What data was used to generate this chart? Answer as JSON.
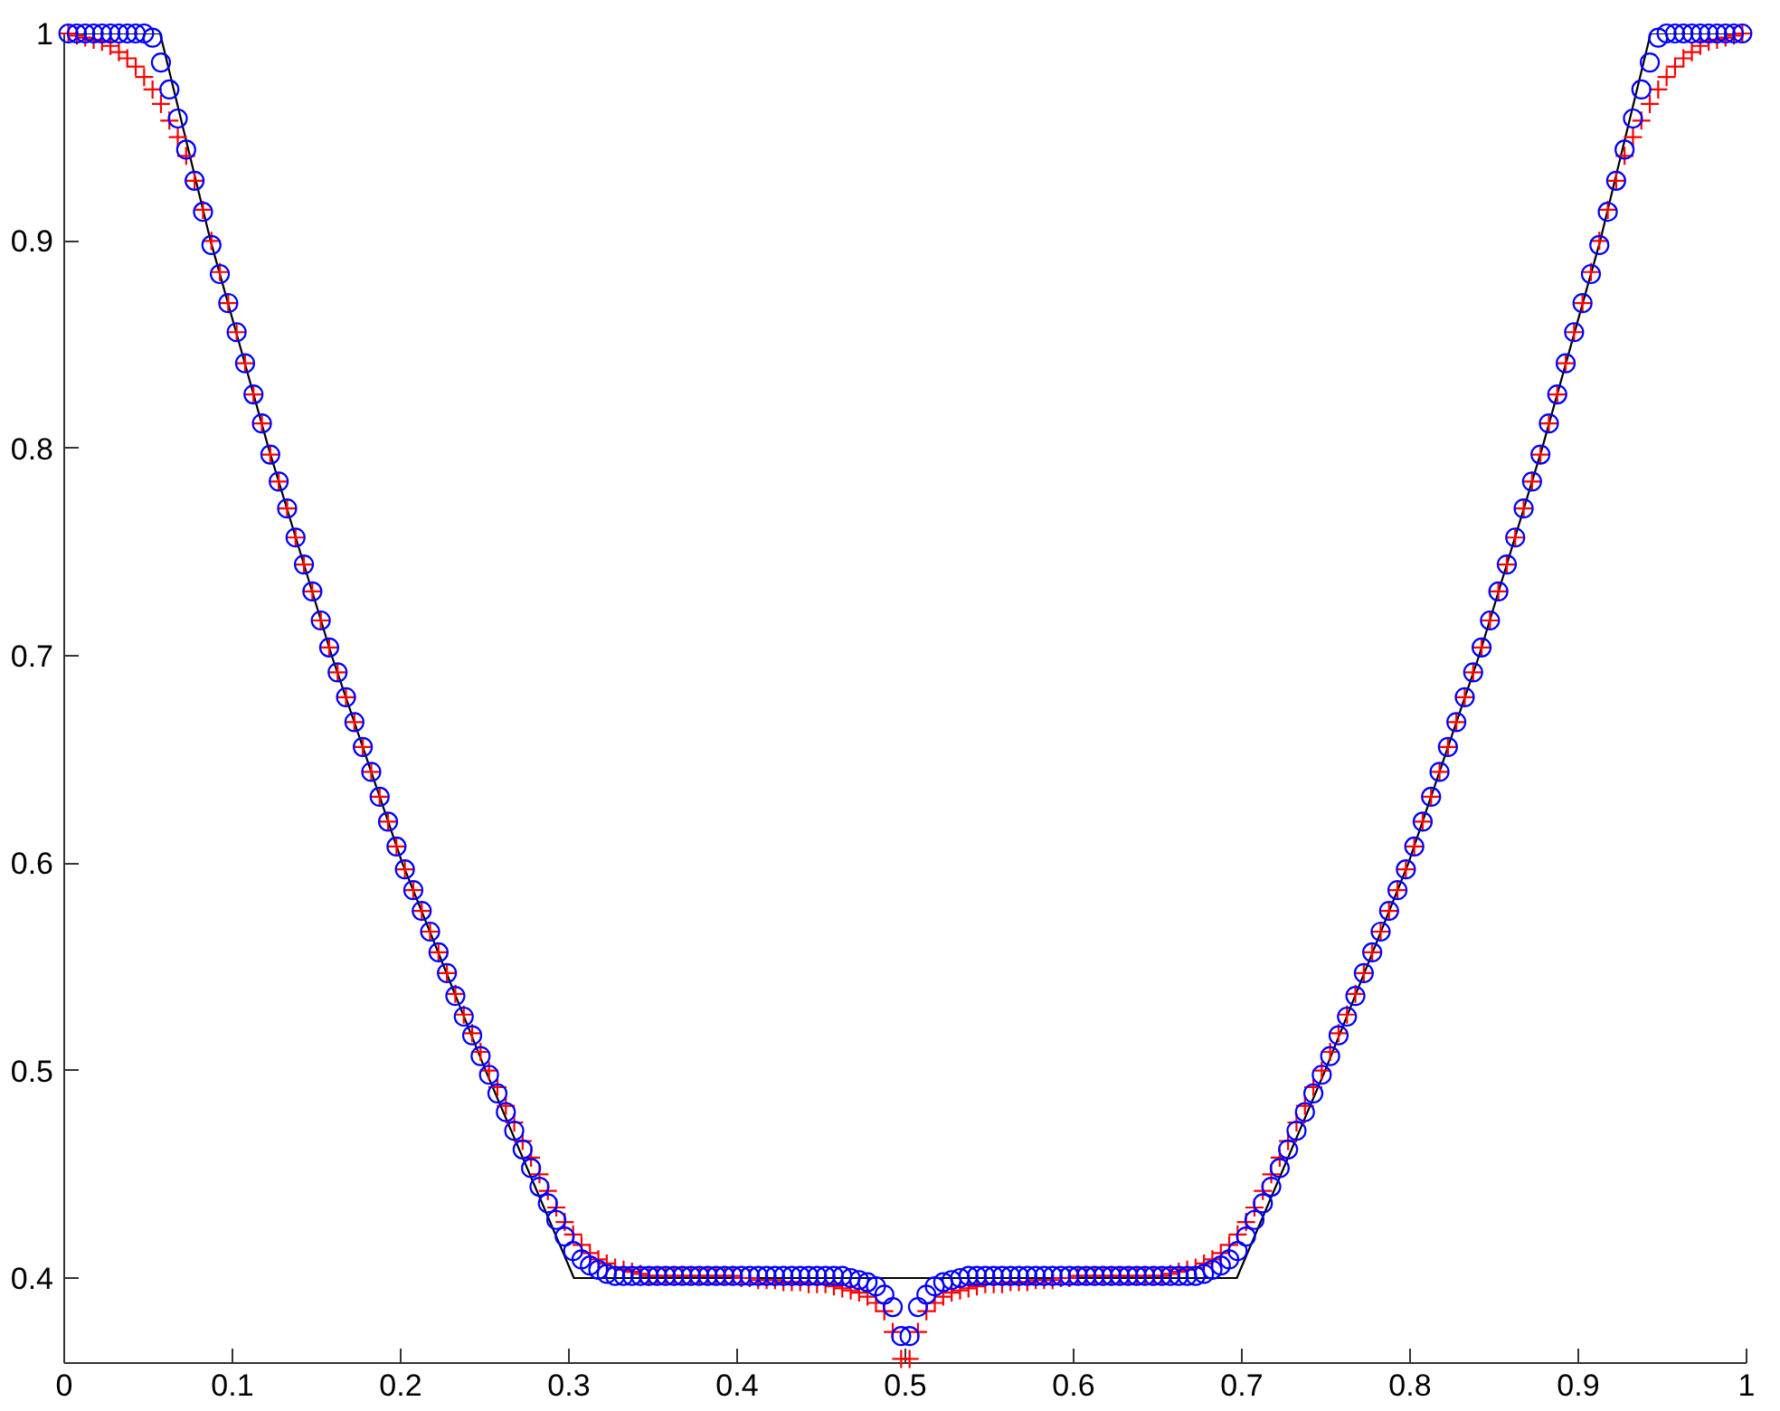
{
  "chart_data": {
    "type": "scatter",
    "xlim": [
      0,
      1
    ],
    "ylim": [
      0.359,
      1
    ],
    "xticks": [
      0,
      0.1,
      0.2,
      0.3,
      0.4,
      0.5,
      0.6,
      0.7,
      0.8,
      0.9,
      1
    ],
    "yticks": [
      0.4,
      0.5,
      0.6,
      0.7,
      0.8,
      0.9,
      1
    ],
    "x": [
      0.0025,
      0.0075,
      0.0125,
      0.0175,
      0.0225,
      0.0275,
      0.0325,
      0.0375,
      0.0425,
      0.0475,
      0.0525,
      0.0575,
      0.0625,
      0.0675,
      0.0725,
      0.0775,
      0.0825,
      0.0875,
      0.0925,
      0.0975,
      0.1025,
      0.1075,
      0.1125,
      0.1175,
      0.1225,
      0.1275,
      0.1325,
      0.1375,
      0.1425,
      0.1475,
      0.1525,
      0.1575,
      0.1625,
      0.1675,
      0.1725,
      0.1775,
      0.1825,
      0.1875,
      0.1925,
      0.1975,
      0.2025,
      0.2075,
      0.2125,
      0.2175,
      0.2225,
      0.2275,
      0.2325,
      0.2375,
      0.2425,
      0.2475,
      0.2525,
      0.2575,
      0.2625,
      0.2675,
      0.2725,
      0.2775,
      0.2825,
      0.2875,
      0.2925,
      0.2975,
      0.3025,
      0.3075,
      0.3125,
      0.3175,
      0.3225,
      0.3275,
      0.3325,
      0.3375,
      0.3425,
      0.3475,
      0.3525,
      0.3575,
      0.3625,
      0.3675,
      0.3725,
      0.3775,
      0.3825,
      0.3875,
      0.3925,
      0.3975,
      0.4025,
      0.4075,
      0.4125,
      0.4175,
      0.4225,
      0.4275,
      0.4325,
      0.4375,
      0.4425,
      0.4475,
      0.4525,
      0.4575,
      0.4625,
      0.4675,
      0.4725,
      0.4775,
      0.4825,
      0.4875,
      0.4925,
      0.4975,
      0.5025,
      0.5075,
      0.5125,
      0.5175,
      0.5225,
      0.5275,
      0.5325,
      0.5375,
      0.5425,
      0.5475,
      0.5525,
      0.5575,
      0.5625,
      0.5675,
      0.5725,
      0.5775,
      0.5825,
      0.5875,
      0.5925,
      0.5975,
      0.6025,
      0.6075,
      0.6125,
      0.6175,
      0.6225,
      0.6275,
      0.6325,
      0.6375,
      0.6425,
      0.6475,
      0.6525,
      0.6575,
      0.6625,
      0.6675,
      0.6725,
      0.6775,
      0.6825,
      0.6875,
      0.6925,
      0.6975,
      0.7025,
      0.7075,
      0.7125,
      0.7175,
      0.7225,
      0.7275,
      0.7325,
      0.7375,
      0.7425,
      0.7475,
      0.7525,
      0.7575,
      0.7625,
      0.7675,
      0.7725,
      0.7775,
      0.7825,
      0.7875,
      0.7925,
      0.7975,
      0.8025,
      0.8075,
      0.8125,
      0.8175,
      0.8225,
      0.8275,
      0.8325,
      0.8375,
      0.8425,
      0.8475,
      0.8525,
      0.8575,
      0.8625,
      0.8675,
      0.8725,
      0.8775,
      0.8825,
      0.8875,
      0.8925,
      0.8975,
      0.9025,
      0.9075,
      0.9125,
      0.9175,
      0.9225,
      0.9275,
      0.9325,
      0.9375,
      0.9425,
      0.9475,
      0.9525,
      0.9575,
      0.9625,
      0.9675,
      0.9725,
      0.9775,
      0.9825,
      0.9875,
      0.9925,
      0.9975
    ],
    "series": [
      {
        "type": "line",
        "color": "#000000",
        "marker": "none",
        "line_style": "solid",
        "x": [
          0,
          0.057,
          0.087,
          0.1215,
          0.159,
          0.201,
          0.2505,
          0.303,
          0.697,
          0.7495,
          0.799,
          0.841,
          0.8785,
          0.913,
          0.943,
          1
        ],
        "values": [
          1,
          1,
          0.9,
          0.8,
          0.7,
          0.6,
          0.5,
          0.4,
          0.4,
          0.5,
          0.6,
          0.7,
          0.8,
          0.9,
          1,
          1
        ]
      },
      {
        "color": "#ff0000",
        "marker": "cross",
        "values": [
          1,
          0.999,
          0.998,
          0.997,
          0.996,
          0.994,
          0.991,
          0.988,
          0.984,
          0.979,
          0.973,
          0.966,
          0.958,
          0.95,
          0.941,
          0.929,
          0.915,
          0.9,
          0.885,
          0.87,
          0.856,
          0.841,
          0.826,
          0.812,
          0.797,
          0.784,
          0.771,
          0.757,
          0.744,
          0.731,
          0.717,
          0.704,
          0.692,
          0.68,
          0.668,
          0.656,
          0.644,
          0.632,
          0.62,
          0.608,
          0.597,
          0.587,
          0.577,
          0.567,
          0.557,
          0.547,
          0.537,
          0.527,
          0.518,
          0.509,
          0.5,
          0.492,
          0.483,
          0.475,
          0.466,
          0.458,
          0.45,
          0.442,
          0.434,
          0.427,
          0.421,
          0.416,
          0.412,
          0.409,
          0.407,
          0.405,
          0.404,
          0.403,
          0.402,
          0.401,
          0.401,
          0.401,
          0.401,
          0.401,
          0.401,
          0.401,
          0.401,
          0.401,
          0.401,
          0.401,
          0.4,
          0.4,
          0.399,
          0.399,
          0.399,
          0.398,
          0.398,
          0.398,
          0.397,
          0.397,
          0.397,
          0.396,
          0.395,
          0.394,
          0.393,
          0.391,
          0.388,
          0.384,
          0.374,
          0.361,
          0.361,
          0.374,
          0.384,
          0.388,
          0.391,
          0.393,
          0.394,
          0.395,
          0.396,
          0.397,
          0.397,
          0.397,
          0.398,
          0.398,
          0.398,
          0.399,
          0.399,
          0.399,
          0.4,
          0.4,
          0.401,
          0.401,
          0.401,
          0.401,
          0.401,
          0.401,
          0.401,
          0.401,
          0.401,
          0.401,
          0.401,
          0.402,
          0.403,
          0.404,
          0.405,
          0.407,
          0.409,
          0.412,
          0.416,
          0.421,
          0.427,
          0.434,
          0.442,
          0.45,
          0.458,
          0.466,
          0.475,
          0.483,
          0.492,
          0.5,
          0.509,
          0.518,
          0.527,
          0.537,
          0.547,
          0.557,
          0.567,
          0.577,
          0.587,
          0.597,
          0.608,
          0.62,
          0.632,
          0.644,
          0.656,
          0.668,
          0.68,
          0.692,
          0.704,
          0.717,
          0.731,
          0.744,
          0.757,
          0.771,
          0.784,
          0.797,
          0.812,
          0.826,
          0.841,
          0.856,
          0.87,
          0.885,
          0.9,
          0.915,
          0.929,
          0.941,
          0.95,
          0.958,
          0.966,
          0.973,
          0.979,
          0.984,
          0.988,
          0.991,
          0.994,
          0.996,
          0.997,
          0.998,
          0.999,
          1
        ]
      },
      {
        "color": "#0000ff",
        "marker": "circle",
        "values": [
          1,
          1,
          1,
          1,
          1,
          1,
          1,
          1,
          1,
          1,
          0.998,
          0.986,
          0.973,
          0.959,
          0.944,
          0.929,
          0.914,
          0.898,
          0.884,
          0.87,
          0.856,
          0.841,
          0.826,
          0.812,
          0.797,
          0.784,
          0.771,
          0.757,
          0.744,
          0.731,
          0.717,
          0.704,
          0.692,
          0.68,
          0.668,
          0.656,
          0.644,
          0.632,
          0.62,
          0.608,
          0.597,
          0.587,
          0.577,
          0.567,
          0.557,
          0.547,
          0.536,
          0.526,
          0.517,
          0.507,
          0.498,
          0.489,
          0.48,
          0.471,
          0.462,
          0.453,
          0.444,
          0.436,
          0.428,
          0.42,
          0.413,
          0.409,
          0.406,
          0.404,
          0.402,
          0.401,
          0.401,
          0.401,
          0.401,
          0.401,
          0.401,
          0.401,
          0.401,
          0.401,
          0.401,
          0.401,
          0.401,
          0.401,
          0.401,
          0.401,
          0.401,
          0.401,
          0.401,
          0.401,
          0.401,
          0.401,
          0.401,
          0.401,
          0.401,
          0.401,
          0.401,
          0.401,
          0.401,
          0.4,
          0.399,
          0.398,
          0.396,
          0.392,
          0.386,
          0.372,
          0.372,
          0.386,
          0.392,
          0.396,
          0.398,
          0.399,
          0.4,
          0.401,
          0.401,
          0.401,
          0.401,
          0.401,
          0.401,
          0.401,
          0.401,
          0.401,
          0.401,
          0.401,
          0.401,
          0.401,
          0.401,
          0.401,
          0.401,
          0.401,
          0.401,
          0.401,
          0.401,
          0.401,
          0.401,
          0.401,
          0.401,
          0.401,
          0.401,
          0.401,
          0.401,
          0.402,
          0.404,
          0.406,
          0.409,
          0.413,
          0.42,
          0.428,
          0.436,
          0.444,
          0.453,
          0.462,
          0.471,
          0.48,
          0.489,
          0.498,
          0.507,
          0.517,
          0.526,
          0.536,
          0.547,
          0.557,
          0.567,
          0.577,
          0.587,
          0.597,
          0.608,
          0.62,
          0.632,
          0.644,
          0.656,
          0.668,
          0.68,
          0.692,
          0.704,
          0.717,
          0.731,
          0.744,
          0.757,
          0.771,
          0.784,
          0.797,
          0.812,
          0.826,
          0.841,
          0.856,
          0.87,
          0.884,
          0.898,
          0.914,
          0.929,
          0.944,
          0.959,
          0.973,
          0.986,
          0.998,
          1,
          1,
          1,
          1,
          1,
          1,
          1,
          1,
          1,
          1
        ]
      }
    ]
  }
}
